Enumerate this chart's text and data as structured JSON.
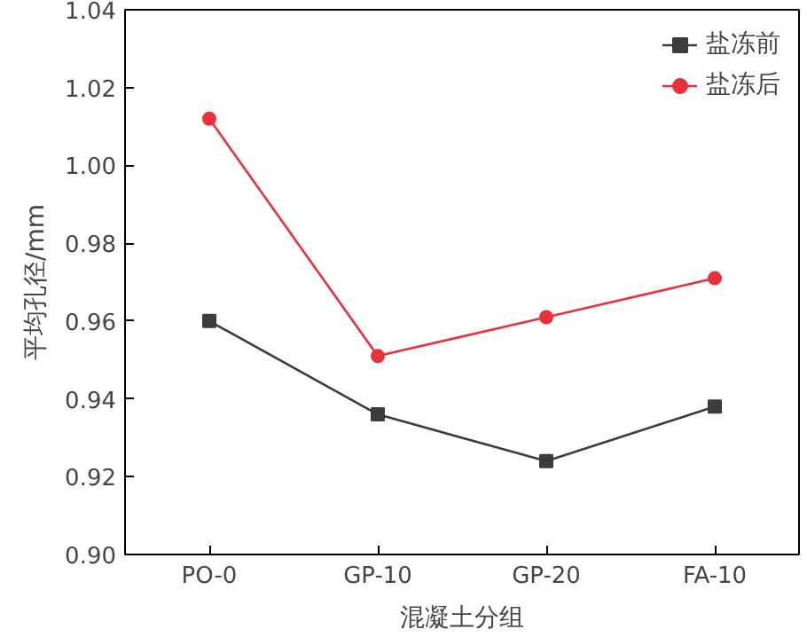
{
  "chart_data": {
    "type": "line",
    "xlabel": "混凝土分组",
    "ylabel": "平均孔径/mm",
    "categories": [
      "PO-0",
      "GP-10",
      "GP-20",
      "FA-10"
    ],
    "series": [
      {
        "name": "盐冻前",
        "color": "#3c3c3c",
        "marker": "square",
        "values": [
          0.96,
          0.936,
          0.924,
          0.938
        ]
      },
      {
        "name": "盐冻后",
        "color": "#e8313a",
        "marker": "circle",
        "values": [
          1.012,
          0.951,
          0.961,
          0.971
        ]
      }
    ],
    "ylim": [
      0.9,
      1.04
    ],
    "yticks": [
      {
        "value": 0.9,
        "label": "0.90"
      },
      {
        "value": 0.92,
        "label": "0.92"
      },
      {
        "value": 0.94,
        "label": "0.94"
      },
      {
        "value": 0.96,
        "label": "0.96"
      },
      {
        "value": 0.98,
        "label": "0.98"
      },
      {
        "value": 1.0,
        "label": "1.00"
      },
      {
        "value": 1.02,
        "label": "1.02"
      },
      {
        "value": 1.04,
        "label": "1.04"
      }
    ],
    "grid": false,
    "legend": "top right",
    "line_style": "solid"
  }
}
